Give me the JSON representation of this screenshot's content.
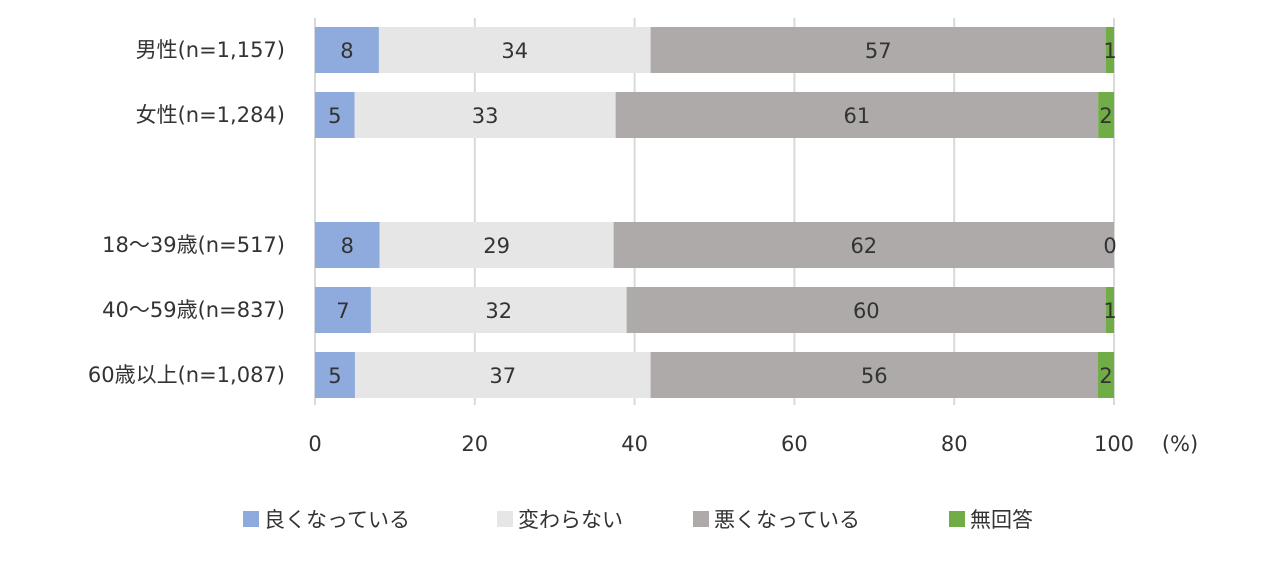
{
  "chart_data": {
    "type": "bar",
    "orientation": "horizontal",
    "stacked": true,
    "categories": [
      "男性(n=1,157)",
      "女性(n=1,284)",
      "",
      "18～39歳(n=517)",
      "40～59歳(n=837)",
      "60歳以上(n=1,087)"
    ],
    "series": [
      {
        "name": "良くなっている",
        "color": "#8FAADC",
        "values": [
          8,
          5,
          null,
          8,
          7,
          5
        ]
      },
      {
        "name": "変わらない",
        "color": "#E7E6E6",
        "values": [
          34,
          33,
          null,
          29,
          32,
          37
        ]
      },
      {
        "name": "悪くなっている",
        "color": "#AEAAAA",
        "values": [
          57,
          61,
          null,
          62,
          60,
          56
        ]
      },
      {
        "name": "無回答",
        "color": "#70AD47",
        "values": [
          1,
          2,
          null,
          0,
          1,
          2
        ]
      }
    ],
    "xlim": [
      0,
      100
    ],
    "xticks": [
      0,
      20,
      40,
      60,
      80,
      100
    ],
    "xunit": "(%)",
    "grid": true,
    "legend_position": "bottom"
  }
}
